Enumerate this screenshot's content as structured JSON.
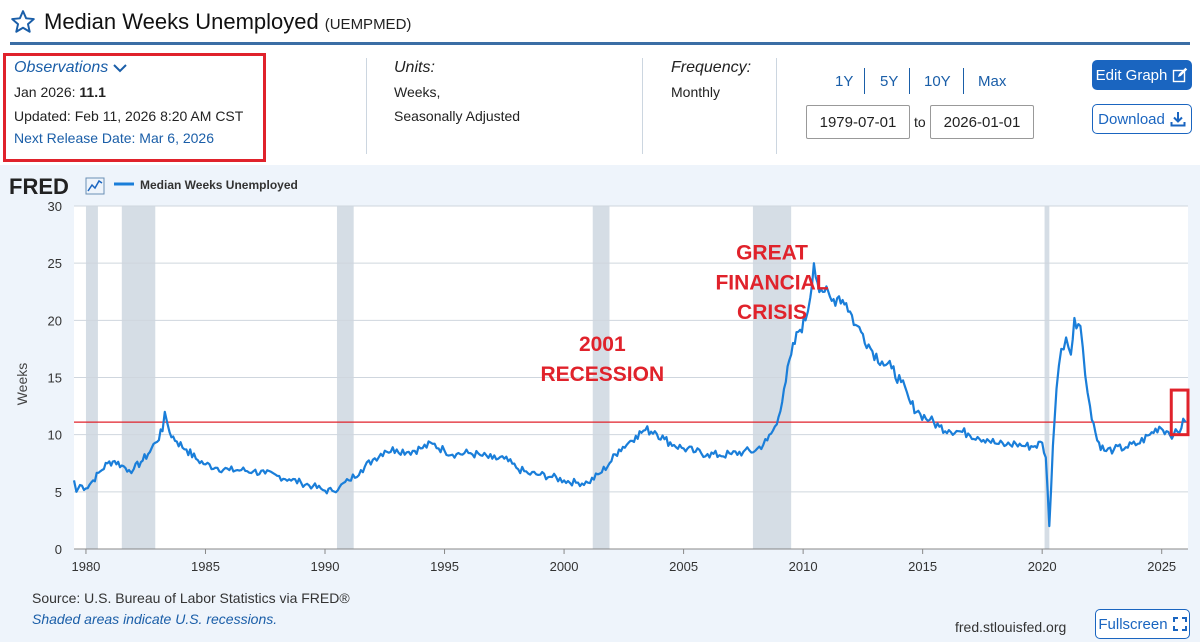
{
  "header": {
    "title": "Median Weeks Unemployed",
    "series_id": "(UEMPMED)"
  },
  "observations": {
    "label": "Observations",
    "date": "Jan 2026:",
    "value": "11.1",
    "updated": "Updated: Feb 11, 2026 8:20 AM CST",
    "next_release": "Next Release Date: Mar 6, 2026"
  },
  "units": {
    "label": "Units:",
    "line1": "Weeks,",
    "line2": "Seasonally Adjusted"
  },
  "frequency": {
    "label": "Frequency:",
    "value": "Monthly"
  },
  "range_buttons": [
    "1Y",
    "5Y",
    "10Y",
    "Max"
  ],
  "date_range": {
    "start": "1979-07-01",
    "to": "to",
    "end": "2026-01-01"
  },
  "buttons": {
    "edit": "Edit Graph",
    "download": "Download",
    "fullscreen": "Fullscreen"
  },
  "logo": "FRED",
  "footer": {
    "source": "Source: U.S. Bureau of Labor Statistics via FRED®",
    "shading_note": "Shaded areas indicate U.S. recessions.",
    "site": "fred.stlouisfed.org"
  },
  "colors": {
    "accent": "#1a65c0",
    "line": "#1a7ed9",
    "highlight": "#e0222b",
    "recession": "#d5dde5"
  },
  "chart_data": {
    "type": "line",
    "title": "Median Weeks Unemployed",
    "xlabel": "",
    "ylabel": "Weeks",
    "xlim": [
      1979.5,
      2026.1
    ],
    "ylim": [
      0,
      30
    ],
    "yticks": [
      0,
      5,
      10,
      15,
      20,
      25,
      30
    ],
    "xticks": [
      1980,
      1985,
      1990,
      1995,
      2000,
      2005,
      2010,
      2015,
      2020,
      2025
    ],
    "legend": "top-left",
    "recessions": [
      [
        1980.0,
        1980.5
      ],
      [
        1981.5,
        1982.9
      ],
      [
        1990.5,
        1991.2
      ],
      [
        2001.2,
        2001.9
      ],
      [
        2007.9,
        2009.5
      ],
      [
        2020.1,
        2020.3
      ]
    ],
    "reference_line": {
      "value": 11.1,
      "color": "#e0222b"
    },
    "annotations": [
      {
        "text": "GREAT",
        "x": 2008.7,
        "y": 25.3
      },
      {
        "text": "FINANCIAL",
        "x": 2008.7,
        "y": 22.7
      },
      {
        "text": "CRISIS",
        "x": 2008.7,
        "y": 20.1
      },
      {
        "text": "2001",
        "x": 2001.6,
        "y": 17.3
      },
      {
        "text": "RECESSION",
        "x": 2001.6,
        "y": 14.7
      }
    ],
    "highlight": {
      "x0": 2025.4,
      "x1": 2026.1,
      "y0": 10.0,
      "y1": 13.9
    },
    "series": [
      {
        "name": "Median Weeks Unemployed",
        "points": [
          [
            1979.5,
            6.0
          ],
          [
            1979.6,
            5.0
          ],
          [
            1979.75,
            5.6
          ],
          [
            1980.0,
            5.3
          ],
          [
            1980.3,
            6.0
          ],
          [
            1980.6,
            6.8
          ],
          [
            1980.9,
            7.5
          ],
          [
            1981.2,
            7.7
          ],
          [
            1981.5,
            7.3
          ],
          [
            1981.8,
            6.9
          ],
          [
            1982.0,
            7.0
          ],
          [
            1982.3,
            7.6
          ],
          [
            1982.6,
            8.3
          ],
          [
            1982.9,
            9.3
          ],
          [
            1983.2,
            10.3
          ],
          [
            1983.3,
            12.0
          ],
          [
            1983.5,
            10.2
          ],
          [
            1983.8,
            9.4
          ],
          [
            1984.2,
            8.7
          ],
          [
            1984.6,
            7.9
          ],
          [
            1985.0,
            7.4
          ],
          [
            1985.5,
            7.1
          ],
          [
            1986.0,
            6.9
          ],
          [
            1986.5,
            6.9
          ],
          [
            1987.0,
            6.8
          ],
          [
            1987.5,
            6.6
          ],
          [
            1988.0,
            6.4
          ],
          [
            1988.5,
            6.1
          ],
          [
            1989.0,
            5.8
          ],
          [
            1989.5,
            5.5
          ],
          [
            1990.0,
            5.1
          ],
          [
            1990.3,
            5.1
          ],
          [
            1990.6,
            5.4
          ],
          [
            1991.0,
            6.0
          ],
          [
            1991.5,
            6.9
          ],
          [
            1992.0,
            7.8
          ],
          [
            1992.5,
            8.6
          ],
          [
            1993.0,
            8.7
          ],
          [
            1993.5,
            8.5
          ],
          [
            1994.0,
            8.8
          ],
          [
            1994.5,
            9.2
          ],
          [
            1995.0,
            8.6
          ],
          [
            1995.5,
            8.3
          ],
          [
            1996.0,
            8.4
          ],
          [
            1996.5,
            8.2
          ],
          [
            1997.0,
            7.9
          ],
          [
            1997.5,
            7.9
          ],
          [
            1998.0,
            7.1
          ],
          [
            1998.5,
            6.6
          ],
          [
            1999.0,
            6.5
          ],
          [
            1999.5,
            6.3
          ],
          [
            2000.0,
            6.0
          ],
          [
            2000.5,
            5.8
          ],
          [
            2001.0,
            5.8
          ],
          [
            2001.5,
            6.6
          ],
          [
            2001.9,
            7.5
          ],
          [
            2002.3,
            8.7
          ],
          [
            2002.7,
            9.3
          ],
          [
            2003.0,
            9.9
          ],
          [
            2003.4,
            10.4
          ],
          [
            2003.8,
            10.3
          ],
          [
            2004.2,
            9.6
          ],
          [
            2004.6,
            9.1
          ],
          [
            2005.0,
            8.8
          ],
          [
            2005.5,
            8.5
          ],
          [
            2006.0,
            8.3
          ],
          [
            2006.5,
            8.2
          ],
          [
            2007.0,
            8.3
          ],
          [
            2007.5,
            8.5
          ],
          [
            2008.0,
            8.6
          ],
          [
            2008.5,
            9.5
          ],
          [
            2008.9,
            10.9
          ],
          [
            2009.2,
            14.0
          ],
          [
            2009.5,
            17.0
          ],
          [
            2009.8,
            19.0
          ],
          [
            2010.1,
            20.0
          ],
          [
            2010.3,
            22.0
          ],
          [
            2010.45,
            25.0
          ],
          [
            2010.6,
            23.3
          ],
          [
            2010.9,
            22.5
          ],
          [
            2011.2,
            21.7
          ],
          [
            2011.5,
            22.1
          ],
          [
            2011.8,
            21.5
          ],
          [
            2012.2,
            19.6
          ],
          [
            2012.5,
            18.8
          ],
          [
            2012.9,
            17.3
          ],
          [
            2013.3,
            16.4
          ],
          [
            2013.7,
            15.8
          ],
          [
            2014.1,
            14.6
          ],
          [
            2014.5,
            12.7
          ],
          [
            2014.9,
            11.8
          ],
          [
            2015.3,
            11.3
          ],
          [
            2015.7,
            10.7
          ],
          [
            2016.1,
            10.4
          ],
          [
            2016.5,
            10.3
          ],
          [
            2016.9,
            10.1
          ],
          [
            2017.3,
            9.8
          ],
          [
            2017.7,
            9.6
          ],
          [
            2018.1,
            9.2
          ],
          [
            2018.5,
            9.1
          ],
          [
            2018.9,
            9.2
          ],
          [
            2019.3,
            9.0
          ],
          [
            2019.7,
            9.0
          ],
          [
            2020.0,
            9.3
          ],
          [
            2020.15,
            8.0
          ],
          [
            2020.3,
            2.0
          ],
          [
            2020.45,
            9.0
          ],
          [
            2020.6,
            14.0
          ],
          [
            2020.8,
            17.5
          ],
          [
            2021.0,
            18.5
          ],
          [
            2021.2,
            17.0
          ],
          [
            2021.35,
            20.2
          ],
          [
            2021.6,
            19.5
          ],
          [
            2021.8,
            15.2
          ],
          [
            2022.0,
            12.5
          ],
          [
            2022.3,
            9.5
          ],
          [
            2022.6,
            8.6
          ],
          [
            2023.0,
            8.7
          ],
          [
            2023.5,
            8.9
          ],
          [
            2024.0,
            9.2
          ],
          [
            2024.5,
            10.0
          ],
          [
            2024.9,
            10.7
          ],
          [
            2025.2,
            10.3
          ],
          [
            2025.5,
            10.0
          ],
          [
            2025.75,
            10.2
          ],
          [
            2025.9,
            11.4
          ],
          [
            2026.0,
            11.1
          ]
        ]
      }
    ]
  }
}
